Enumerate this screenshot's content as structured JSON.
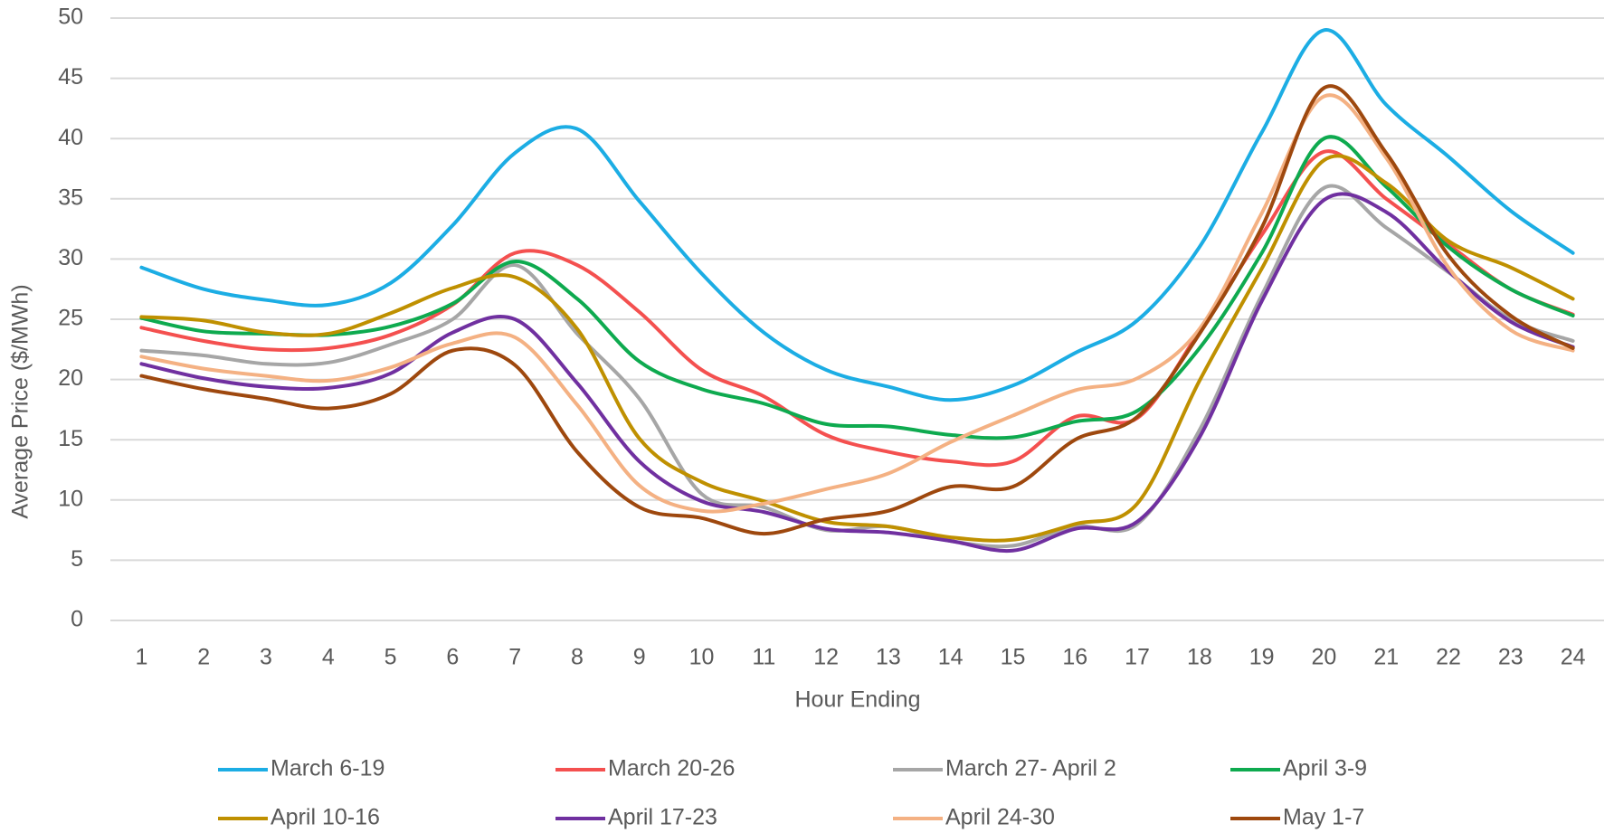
{
  "chart_data": {
    "type": "line",
    "x_label": "Hour Ending",
    "y_label": "Average Price ($/MWh)",
    "categories": [
      "1",
      "2",
      "3",
      "4",
      "5",
      "6",
      "7",
      "8",
      "9",
      "10",
      "11",
      "12",
      "13",
      "14",
      "15",
      "16",
      "17",
      "18",
      "19",
      "20",
      "21",
      "22",
      "23",
      "24"
    ],
    "ylim": [
      0,
      50
    ],
    "yticks": [
      0,
      5,
      10,
      15,
      20,
      25,
      30,
      35,
      40,
      45,
      50
    ],
    "grid": true,
    "legend": "bottom",
    "smooth": true,
    "series": [
      {
        "name": "March 6-19",
        "color": "#1cade4",
        "values": [
          29.3,
          27.5,
          26.6,
          26.2,
          28,
          32.8,
          38.8,
          40.8,
          34.8,
          28.8,
          23.9,
          20.8,
          19.4,
          18.3,
          19.5,
          22.2,
          24.9,
          31,
          40.5,
          49,
          42.8,
          38.5,
          34,
          30.5
        ]
      },
      {
        "name": "March 20-26",
        "color": "#f4504f",
        "values": [
          24.3,
          23.2,
          22.5,
          22.6,
          23.7,
          26.2,
          30.5,
          29.5,
          25.6,
          20.8,
          18.6,
          15.4,
          14,
          13.2,
          13.2,
          16.9,
          16.8,
          24,
          32,
          38.9,
          35,
          31.2,
          27.5,
          25.4
        ]
      },
      {
        "name": "March 27- April 2",
        "color": "#a6a6a6",
        "values": [
          22.4,
          22,
          21.3,
          21.4,
          22.9,
          25,
          29.5,
          23.8,
          18.4,
          10.5,
          9.4,
          7.5,
          7.8,
          6.6,
          6.2,
          7.8,
          8,
          15.8,
          27,
          35.9,
          32.6,
          28.9,
          25,
          23.2
        ]
      },
      {
        "name": "April 3-9",
        "color": "#0eaa4f",
        "values": [
          25.1,
          24,
          23.8,
          23.7,
          24.4,
          26.3,
          29.8,
          26.7,
          21.5,
          19.2,
          18,
          16.3,
          16.1,
          15.4,
          15.2,
          16.5,
          17.4,
          22.6,
          30.5,
          40,
          36,
          31,
          27.5,
          25.3
        ]
      },
      {
        "name": "April 10-16",
        "color": "#bf9000",
        "values": [
          25.2,
          24.9,
          23.9,
          23.8,
          25.5,
          27.6,
          28.5,
          24.2,
          15.1,
          11.5,
          9.9,
          8.2,
          7.8,
          6.9,
          6.7,
          8,
          9.7,
          19.9,
          29.2,
          38.2,
          36.3,
          31.5,
          29.3,
          26.7
        ]
      },
      {
        "name": "April 17-23",
        "color": "#7030a0",
        "values": [
          21.3,
          20.1,
          19.4,
          19.3,
          20.5,
          23.9,
          25,
          19.7,
          13.2,
          9.9,
          9,
          7.6,
          7.3,
          6.6,
          5.8,
          7.6,
          8.2,
          15.2,
          26.5,
          34.9,
          33.9,
          29,
          24.8,
          22.7
        ]
      },
      {
        "name": "April 24-30",
        "color": "#f4b183",
        "values": [
          21.9,
          20.9,
          20.3,
          19.9,
          21,
          23,
          23.5,
          17.9,
          11.2,
          9.1,
          9.7,
          10.9,
          12.2,
          14.8,
          17,
          19.1,
          20.1,
          24.2,
          33.8,
          43.5,
          38.4,
          29.3,
          24.1,
          22.4
        ]
      },
      {
        "name": "May 1-7",
        "color": "#9e480e",
        "values": [
          20.3,
          19.2,
          18.4,
          17.6,
          18.8,
          22.4,
          21.2,
          14,
          9.4,
          8.5,
          7.2,
          8.4,
          9.1,
          11.1,
          11.1,
          15,
          16.9,
          23.8,
          32.6,
          44.2,
          38.8,
          30.3,
          25.3,
          22.6
        ]
      }
    ]
  }
}
